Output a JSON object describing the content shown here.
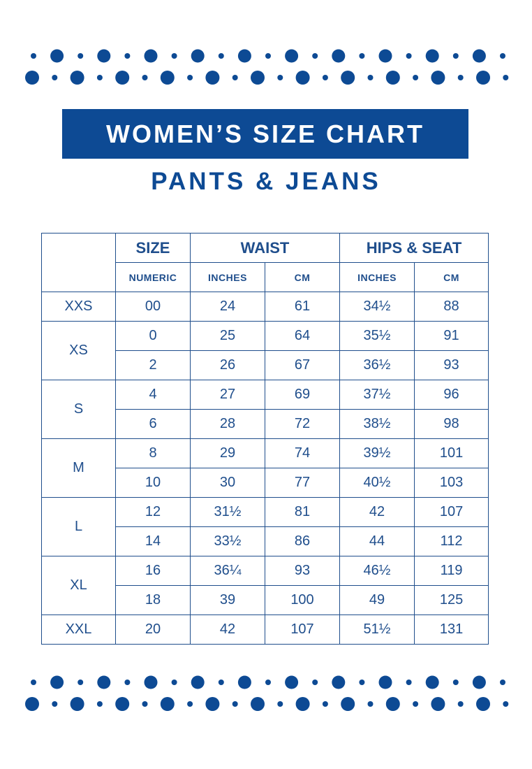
{
  "title": "WOMEN’S SIZE CHART",
  "subtitle": "PANTS & JEANS",
  "colors": {
    "brand": "#0d4a94",
    "text": "#1f4e8c",
    "background": "#ffffff"
  },
  "table": {
    "group_headers": {
      "size": "SIZE",
      "waist": "WAIST",
      "hips": "HIPS & SEAT"
    },
    "sub_headers": [
      "NUMERIC",
      "INCHES",
      "CM",
      "INCHES",
      "CM"
    ],
    "groups": [
      {
        "size": "XXS",
        "rows": [
          [
            "00",
            "24",
            "61",
            "34½",
            "88"
          ]
        ]
      },
      {
        "size": "XS",
        "rows": [
          [
            "0",
            "25",
            "64",
            "35½",
            "91"
          ],
          [
            "2",
            "26",
            "67",
            "36½",
            "93"
          ]
        ]
      },
      {
        "size": "S",
        "rows": [
          [
            "4",
            "27",
            "69",
            "37½",
            "96"
          ],
          [
            "6",
            "28",
            "72",
            "38½",
            "98"
          ]
        ]
      },
      {
        "size": "M",
        "rows": [
          [
            "8",
            "29",
            "74",
            "39½",
            "101"
          ],
          [
            "10",
            "30",
            "77",
            "40½",
            "103"
          ]
        ]
      },
      {
        "size": "L",
        "rows": [
          [
            "12",
            "31½",
            "81",
            "42",
            "107"
          ],
          [
            "14",
            "33½",
            "86",
            "44",
            "112"
          ]
        ]
      },
      {
        "size": "XL",
        "rows": [
          [
            "16",
            "36¼",
            "93",
            "46½",
            "119"
          ],
          [
            "18",
            "39",
            "100",
            "49",
            "125"
          ]
        ]
      },
      {
        "size": "XXL",
        "rows": [
          [
            "20",
            "42",
            "107",
            "51½",
            "131"
          ]
        ]
      }
    ]
  }
}
